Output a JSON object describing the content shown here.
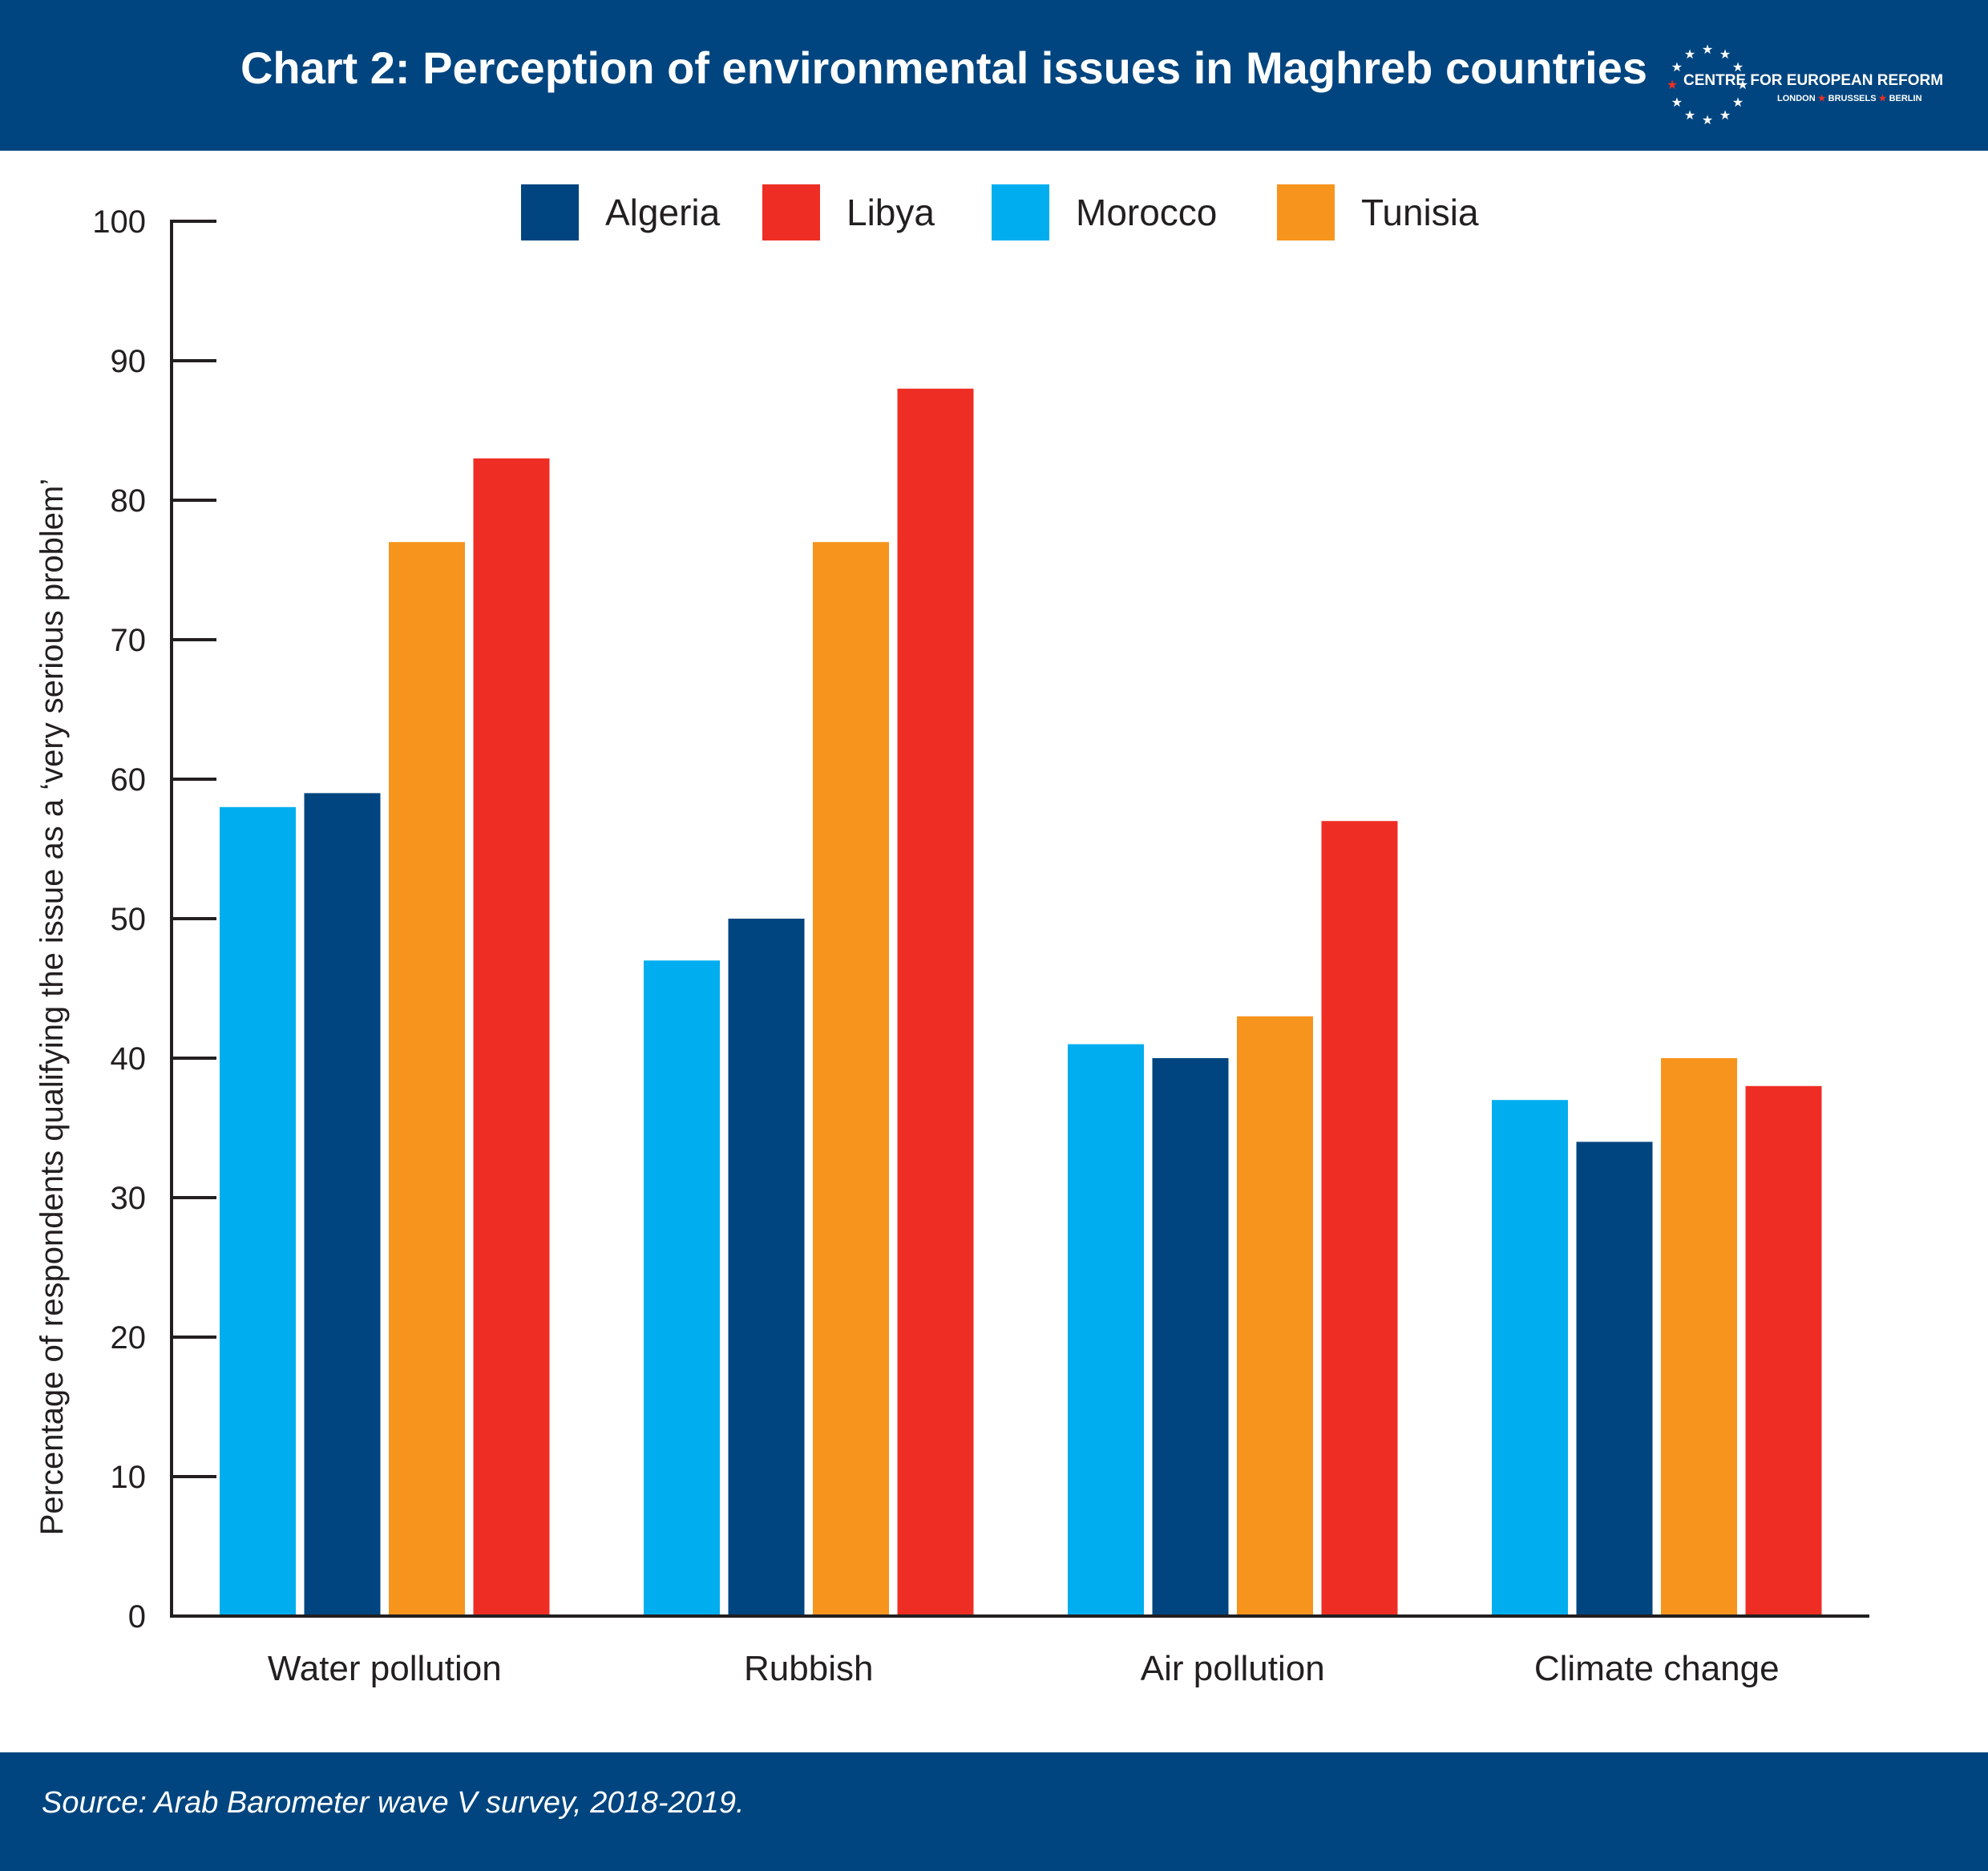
{
  "header": {
    "title": "Chart 2: Perception of environmental issues in Maghreb countries",
    "logo": {
      "name": "CENTRE FOR EUROPEAN REFORM",
      "cities": [
        "LONDON",
        "BRUSSELS",
        "BERLIN"
      ]
    }
  },
  "footer": {
    "source": "Source: Arab Barometer wave V survey, 2018-2019."
  },
  "colors": {
    "header_bg": "#00457f",
    "Algeria": "#00457f",
    "Libya": "#ee2e24",
    "Morocco": "#00aeef",
    "Tunisia": "#f7941d"
  },
  "chart_data": {
    "type": "bar",
    "title": "Chart 2: Perception of environmental issues in Maghreb countries",
    "ylabel": "Percentage of respondents qualifying the issue as a ‘very serious problem’",
    "xlabel": "",
    "ylim": [
      0,
      100
    ],
    "yticks": [
      0,
      10,
      20,
      30,
      40,
      50,
      60,
      70,
      80,
      90,
      100
    ],
    "grid": false,
    "legend_position": "top",
    "legend_order": [
      "Algeria",
      "Libya",
      "Morocco",
      "Tunisia"
    ],
    "categories": [
      "Water pollution",
      "Rubbish",
      "Air pollution",
      "Climate change"
    ],
    "series": [
      {
        "name": "Morocco",
        "values": [
          58,
          47,
          41,
          37
        ]
      },
      {
        "name": "Algeria",
        "values": [
          59,
          50,
          40,
          34
        ]
      },
      {
        "name": "Tunisia",
        "values": [
          77,
          77,
          43,
          40
        ]
      },
      {
        "name": "Libya",
        "values": [
          83,
          88,
          57,
          38
        ]
      }
    ]
  }
}
